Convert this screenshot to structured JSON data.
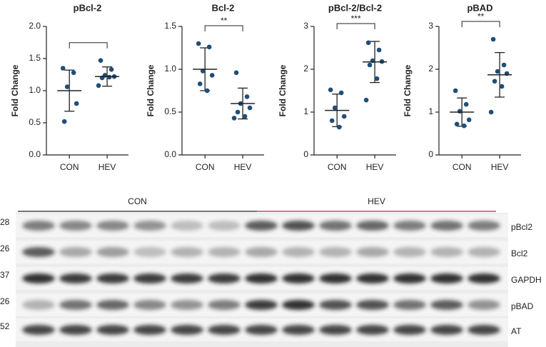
{
  "chart_data": [
    {
      "type": "dot",
      "title": "pBcl-2",
      "ylabel": "Fold Change",
      "categories": [
        "CON",
        "HEV"
      ],
      "color": "#1f4e79",
      "values": [
        [
          1.35,
          1.28,
          1.06,
          0.8,
          0.52
        ],
        [
          1.47,
          1.33,
          1.24,
          1.22,
          1.2,
          1.21,
          1.08
        ]
      ],
      "mean": [
        1.0,
        1.22
      ],
      "sd": [
        0.32,
        0.15
      ],
      "bracket": true,
      "ylim": [
        0,
        2
      ],
      "yticks": [
        {
          "value": 0,
          "label": "0.0"
        },
        0.5,
        {
          "value": 1,
          "label": "1.0"
        },
        1.5,
        {
          "value": 2,
          "label": "2.0"
        }
      ]
    },
    {
      "type": "dot",
      "title": "Bcl-2",
      "ylabel": "Fold Change",
      "categories": [
        "CON",
        "HEV"
      ],
      "color": "#1f4e79",
      "values": [
        [
          1.3,
          1.26,
          0.98,
          0.93,
          0.83,
          0.75
        ],
        [
          0.96,
          0.68,
          0.6,
          0.55,
          0.5,
          0.45,
          0.43
        ]
      ],
      "mean": [
        1.0,
        0.6
      ],
      "sd": [
        0.25,
        0.18
      ],
      "bracket": true,
      "significance": "**",
      "ylim": [
        0,
        1.5
      ],
      "yticks": [
        {
          "value": 0,
          "label": "0.0"
        },
        0.5,
        {
          "value": 1,
          "label": "1.0"
        },
        1.5
      ]
    },
    {
      "type": "dot",
      "title": "pBcl-2/Bcl-2",
      "ylabel": "Fold Change",
      "categories": [
        "CON",
        "HEV"
      ],
      "color": "#1f4e79",
      "values": [
        [
          1.52,
          1.45,
          1.1,
          0.9,
          0.8,
          0.65
        ],
        [
          2.62,
          2.45,
          2.2,
          2.18,
          2.1,
          1.78,
          1.28
        ]
      ],
      "mean": [
        1.04,
        2.17
      ],
      "sd": [
        0.38,
        0.48
      ],
      "bracket": true,
      "significance": "***",
      "ylim": [
        0,
        3
      ],
      "yticks": [
        0,
        1,
        2,
        3
      ]
    },
    {
      "type": "dot",
      "title": "pBAD",
      "ylabel": "Fold Change",
      "categories": [
        "CON",
        "HEV"
      ],
      "color": "#1f4e79",
      "values": [
        [
          1.5,
          1.18,
          1.02,
          0.82,
          0.72,
          0.68
        ],
        [
          2.7,
          2.1,
          1.95,
          1.9,
          1.72,
          1.6,
          1.0
        ]
      ],
      "mean": [
        1.0,
        1.87
      ],
      "sd": [
        0.33,
        0.52
      ],
      "bracket": true,
      "significance": "**",
      "ylim": [
        0,
        3
      ],
      "yticks": [
        0,
        1,
        2,
        3
      ]
    }
  ],
  "blot": {
    "groups": [
      {
        "name": "CON",
        "color": "#222222"
      },
      {
        "name": "HEV",
        "color": "#c2185b"
      }
    ],
    "rows": [
      {
        "marker": "28",
        "protein": "pBcl2"
      },
      {
        "marker": "26",
        "protein": "Bcl2"
      },
      {
        "marker": "37",
        "protein": "GAPDH"
      },
      {
        "marker": "26",
        "protein": "pBAD"
      },
      {
        "marker": "52",
        "protein": "AT"
      }
    ]
  }
}
